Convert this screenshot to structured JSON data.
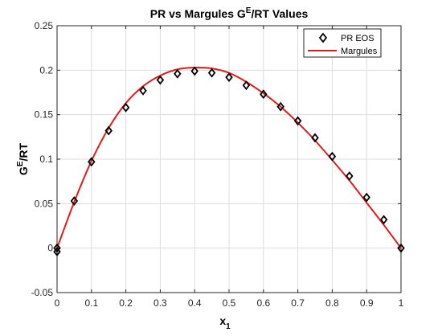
{
  "chart_data": {
    "type": "line",
    "title": {
      "base": "PR vs Margules G",
      "sup": "E",
      "rest": "/RT Values"
    },
    "xlabel": {
      "base": "x",
      "sub": "1"
    },
    "ylabel": {
      "base": "G",
      "sup": "E",
      "rest": "/RT"
    },
    "xlim": [
      0,
      1
    ],
    "ylim": [
      -0.05,
      0.25
    ],
    "xticks": [
      "0",
      "0.1",
      "0.2",
      "0.3",
      "0.4",
      "0.5",
      "0.6",
      "0.7",
      "0.8",
      "0.9",
      "1"
    ],
    "yticks": [
      "-0.05",
      "0",
      "0.05",
      "0.1",
      "0.15",
      "0.2",
      "0.25"
    ],
    "grid": true,
    "legend_position": "top-right",
    "series": [
      {
        "name": "PR EOS",
        "style": "markers",
        "marker": "diamond",
        "color": "#000000",
        "x": [
          0,
          0,
          0.05,
          0.1,
          0.15,
          0.2,
          0.25,
          0.3,
          0.35,
          0.4,
          0.45,
          0.5,
          0.55,
          0.6,
          0.65,
          0.7,
          0.75,
          0.8,
          0.85,
          0.9,
          0.95,
          1.0
        ],
        "y": [
          0.0,
          -0.004,
          0.053,
          0.097,
          0.132,
          0.158,
          0.177,
          0.189,
          0.196,
          0.199,
          0.197,
          0.192,
          0.183,
          0.173,
          0.159,
          0.143,
          0.124,
          0.103,
          0.081,
          0.057,
          0.032,
          0.0
        ]
      },
      {
        "name": "Margules",
        "style": "line",
        "color": "#e41a1c",
        "x": [
          0,
          0.05,
          0.1,
          0.15,
          0.2,
          0.25,
          0.3,
          0.35,
          0.4,
          0.45,
          0.5,
          0.55,
          0.6,
          0.65,
          0.7,
          0.75,
          0.8,
          0.85,
          0.9,
          0.95,
          1.0
        ],
        "y": [
          0.0,
          0.052,
          0.098,
          0.135,
          0.163,
          0.182,
          0.194,
          0.201,
          0.203,
          0.202,
          0.197,
          0.187,
          0.174,
          0.159,
          0.141,
          0.121,
          0.099,
          0.076,
          0.051,
          0.026,
          0.0
        ]
      }
    ]
  }
}
